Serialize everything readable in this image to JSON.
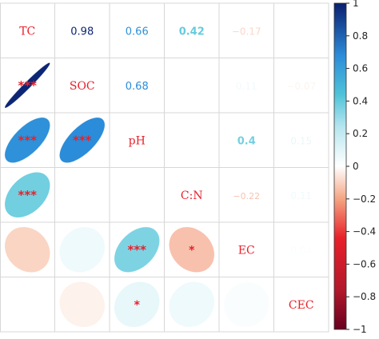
{
  "chart_data": {
    "type": "heatmap",
    "title": "",
    "variables": [
      "TC",
      "SOC",
      "pH",
      "C:N",
      "EC",
      "CEC"
    ],
    "upper_triangle": [
      {
        "row": "TC",
        "col": "SOC",
        "r": 0.98,
        "label": "0.98"
      },
      {
        "row": "TC",
        "col": "pH",
        "r": 0.66,
        "label": "0.66"
      },
      {
        "row": "TC",
        "col": "C:N",
        "r": 0.42,
        "label": "0.42"
      },
      {
        "row": "TC",
        "col": "EC",
        "r": -0.17,
        "label": "−0.17"
      },
      {
        "row": "TC",
        "col": "CEC",
        "r": 0.0,
        "label": ""
      },
      {
        "row": "SOC",
        "col": "pH",
        "r": 0.68,
        "label": "0.68"
      },
      {
        "row": "SOC",
        "col": "C:N",
        "r": 0.0,
        "label": ""
      },
      {
        "row": "SOC",
        "col": "EC",
        "r": 0.11,
        "label": "0.11"
      },
      {
        "row": "SOC",
        "col": "CEC",
        "r": -0.07,
        "label": "−0.07"
      },
      {
        "row": "pH",
        "col": "C:N",
        "r": 0.0,
        "label": "0.00"
      },
      {
        "row": "pH",
        "col": "EC",
        "r": 0.4,
        "label": "0.4"
      },
      {
        "row": "pH",
        "col": "CEC",
        "r": 0.15,
        "label": "0.15"
      },
      {
        "row": "C:N",
        "col": "EC",
        "r": -0.22,
        "label": "−0.22"
      },
      {
        "row": "C:N",
        "col": "CEC",
        "r": 0.11,
        "label": "0.11"
      },
      {
        "row": "EC",
        "col": "CEC",
        "r": 0.04,
        "label": "0.04"
      }
    ],
    "lower_triangle": [
      {
        "row": "SOC",
        "col": "TC",
        "r": 0.98,
        "stars": "***"
      },
      {
        "row": "pH",
        "col": "TC",
        "r": 0.66,
        "stars": "***"
      },
      {
        "row": "pH",
        "col": "SOC",
        "r": 0.68,
        "stars": "***"
      },
      {
        "row": "C:N",
        "col": "TC",
        "r": 0.42,
        "stars": "***"
      },
      {
        "row": "C:N",
        "col": "SOC",
        "r": 0.0,
        "stars": ""
      },
      {
        "row": "C:N",
        "col": "pH",
        "r": 0.0,
        "stars": ""
      },
      {
        "row": "EC",
        "col": "TC",
        "r": -0.17,
        "stars": ""
      },
      {
        "row": "EC",
        "col": "SOC",
        "r": 0.11,
        "stars": ""
      },
      {
        "row": "EC",
        "col": "pH",
        "r": 0.4,
        "stars": "***"
      },
      {
        "row": "EC",
        "col": "C:N",
        "r": -0.22,
        "stars": "*"
      },
      {
        "row": "CEC",
        "col": "TC",
        "r": 0.0,
        "stars": ""
      },
      {
        "row": "CEC",
        "col": "SOC",
        "r": -0.07,
        "stars": ""
      },
      {
        "row": "CEC",
        "col": "pH",
        "r": 0.15,
        "stars": "*"
      },
      {
        "row": "CEC",
        "col": "C:N",
        "r": 0.11,
        "stars": ""
      },
      {
        "row": "CEC",
        "col": "EC",
        "r": 0.04,
        "stars": ""
      }
    ],
    "colorbar": {
      "range": [
        -1,
        1
      ],
      "ticks": [
        1,
        0.8,
        0.6,
        0.4,
        0.2,
        0,
        -0.2,
        -0.4,
        -0.6,
        -0.8,
        -1
      ],
      "tick_labels": [
        "1",
        "0.8",
        "0.6",
        "0.4",
        "0.2",
        "0",
        "−0.2",
        "−0.4",
        "−0.6",
        "−0.8",
        "−1"
      ],
      "colormap": "RdBu",
      "colors": {
        "negative_end": "#67001f",
        "negative_mid": "#e8202a",
        "zero": "#ffffff",
        "positive_mid": "#4fc3d9",
        "positive_end": "#0a1f6e"
      }
    },
    "label_color": "#e8202a",
    "grid": true
  }
}
